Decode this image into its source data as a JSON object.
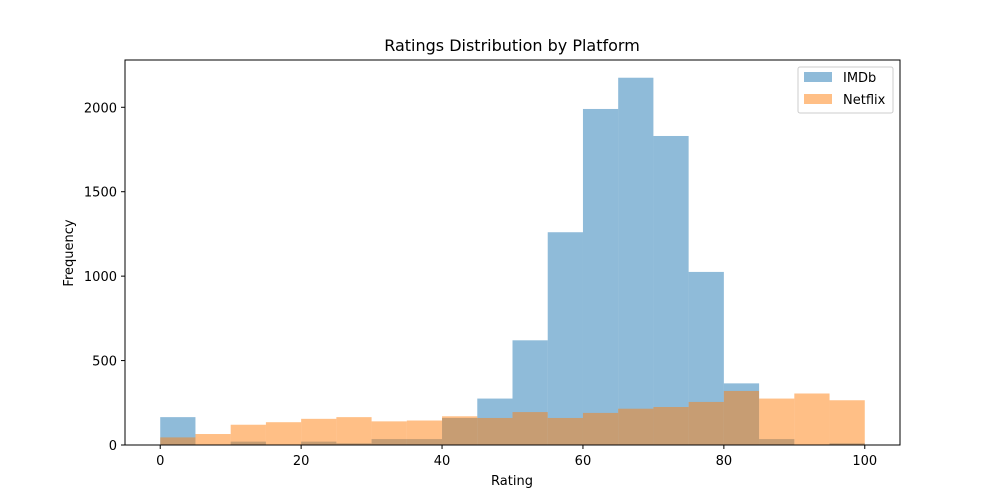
{
  "chart_data": {
    "type": "bar",
    "title": "Ratings Distribution by Platform",
    "xlabel": "Rating",
    "ylabel": "Frequency",
    "xlim": [
      -5,
      105
    ],
    "ylim": [
      0,
      2280
    ],
    "xticks": [
      0,
      20,
      40,
      60,
      80,
      100
    ],
    "yticks": [
      0,
      500,
      1000,
      1500,
      2000
    ],
    "bin_edges": [
      0,
      5,
      10,
      15,
      20,
      25,
      30,
      35,
      40,
      45,
      50,
      55,
      60,
      65,
      70,
      75,
      80,
      85,
      90,
      95,
      100
    ],
    "grid": false,
    "legend_position": "top-right",
    "series": [
      {
        "name": "IMDb",
        "color": "#1f77b4",
        "opacity": 0.5,
        "values": [
          165,
          0,
          20,
          0,
          20,
          10,
          35,
          35,
          160,
          275,
          620,
          1260,
          1990,
          2175,
          1830,
          1025,
          365,
          35,
          0,
          10
        ]
      },
      {
        "name": "Netflix",
        "color": "#ff7f0e",
        "opacity": 0.5,
        "values": [
          45,
          65,
          120,
          135,
          155,
          165,
          140,
          145,
          170,
          160,
          195,
          160,
          190,
          215,
          225,
          255,
          320,
          275,
          305,
          265
        ]
      }
    ]
  }
}
